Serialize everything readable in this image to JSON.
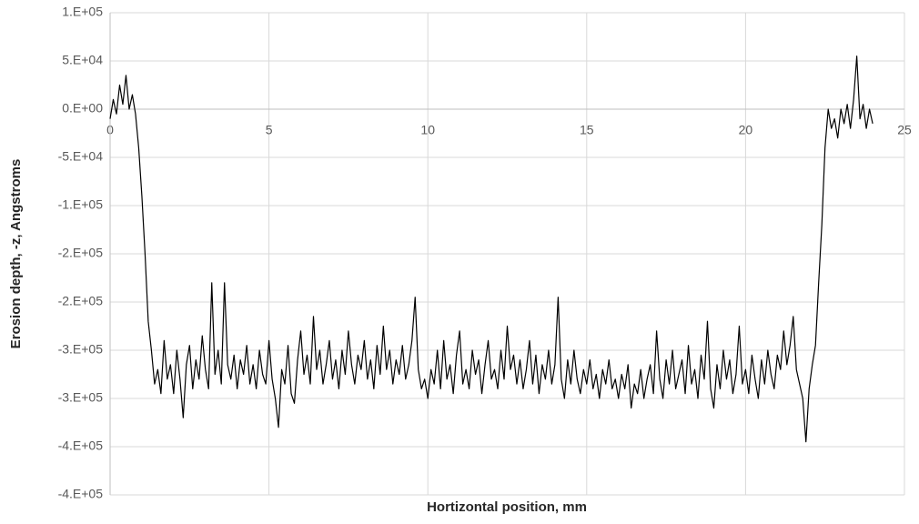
{
  "chart_data": {
    "type": "line",
    "x_label": "Hortizontal position, mm",
    "y_label": "Erosion depth, -z, Angstroms",
    "xlim": [
      0,
      25
    ],
    "xticks": [
      0,
      5,
      10,
      15,
      20,
      25
    ],
    "ylim": [
      -400000,
      100000
    ],
    "yticks": [
      {
        "value": 100000,
        "label": "1.E+05"
      },
      {
        "value": 50000,
        "label": "5.E+04"
      },
      {
        "value": 0,
        "label": "0.E+00"
      },
      {
        "value": -50000,
        "label": "-5.E+04"
      },
      {
        "value": -100000,
        "label": "-1.E+05"
      },
      {
        "value": -150000,
        "label": "-2.E+05"
      },
      {
        "value": -200000,
        "label": "-2.E+05"
      },
      {
        "value": -250000,
        "label": "-3.E+05"
      },
      {
        "value": -300000,
        "label": "-3.E+05"
      },
      {
        "value": -350000,
        "label": "-4.E+05"
      },
      {
        "value": -400000,
        "label": "-4.E+05"
      }
    ],
    "grid": true,
    "x": [
      0,
      0.1,
      0.2,
      0.3,
      0.4,
      0.5,
      0.6,
      0.7,
      0.8,
      0.9,
      1,
      1.1,
      1.2,
      1.3,
      1.4,
      1.5,
      1.6,
      1.7,
      1.8,
      1.9,
      2,
      2.1,
      2.2,
      2.3,
      2.4,
      2.5,
      2.6,
      2.7,
      2.8,
      2.9,
      3,
      3.1,
      3.2,
      3.3,
      3.4,
      3.5,
      3.6,
      3.7,
      3.8,
      3.9,
      4,
      4.1,
      4.2,
      4.3,
      4.4,
      4.5,
      4.6,
      4.7,
      4.8,
      4.9,
      5,
      5.1,
      5.2,
      5.3,
      5.4,
      5.5,
      5.6,
      5.7,
      5.8,
      5.9,
      6,
      6.1,
      6.2,
      6.3,
      6.4,
      6.5,
      6.6,
      6.7,
      6.8,
      6.9,
      7,
      7.1,
      7.2,
      7.3,
      7.4,
      7.5,
      7.6,
      7.7,
      7.8,
      7.9,
      8,
      8.1,
      8.2,
      8.3,
      8.4,
      8.5,
      8.6,
      8.7,
      8.8,
      8.9,
      9,
      9.1,
      9.2,
      9.3,
      9.4,
      9.5,
      9.6,
      9.7,
      9.8,
      9.9,
      10,
      10.1,
      10.2,
      10.3,
      10.4,
      10.5,
      10.6,
      10.7,
      10.8,
      10.9,
      11,
      11.1,
      11.2,
      11.3,
      11.4,
      11.5,
      11.6,
      11.7,
      11.8,
      11.9,
      12,
      12.1,
      12.2,
      12.3,
      12.4,
      12.5,
      12.6,
      12.7,
      12.8,
      12.9,
      13,
      13.1,
      13.2,
      13.3,
      13.4,
      13.5,
      13.6,
      13.7,
      13.8,
      13.9,
      14,
      14.1,
      14.2,
      14.3,
      14.4,
      14.5,
      14.6,
      14.7,
      14.8,
      14.9,
      15,
      15.1,
      15.2,
      15.3,
      15.4,
      15.5,
      15.6,
      15.7,
      15.8,
      15.9,
      16,
      16.1,
      16.2,
      16.3,
      16.4,
      16.5,
      16.6,
      16.7,
      16.8,
      16.9,
      17,
      17.1,
      17.2,
      17.3,
      17.4,
      17.5,
      17.6,
      17.7,
      17.8,
      17.9,
      18,
      18.1,
      18.2,
      18.3,
      18.4,
      18.5,
      18.6,
      18.7,
      18.8,
      18.9,
      19,
      19.1,
      19.2,
      19.3,
      19.4,
      19.5,
      19.6,
      19.7,
      19.8,
      19.9,
      20,
      20.1,
      20.2,
      20.3,
      20.4,
      20.5,
      20.6,
      20.7,
      20.8,
      20.9,
      21,
      21.1,
      21.2,
      21.3,
      21.4,
      21.5,
      21.6,
      21.7,
      21.8,
      21.9,
      22,
      22.1,
      22.2,
      22.3,
      22.4,
      22.5,
      22.6,
      22.7,
      22.8,
      22.9,
      23,
      23.1,
      23.2,
      23.3,
      23.4,
      23.5,
      23.6,
      23.7,
      23.8,
      23.9,
      24
    ],
    "series": [
      {
        "color": "#000000",
        "values": [
          -10000,
          10000,
          -5000,
          25000,
          5000,
          35000,
          0,
          15000,
          -5000,
          -40000,
          -90000,
          -150000,
          -220000,
          -250000,
          -285000,
          -270000,
          -295000,
          -240000,
          -280000,
          -265000,
          -295000,
          -250000,
          -280000,
          -320000,
          -265000,
          -245000,
          -290000,
          -260000,
          -280000,
          -235000,
          -270000,
          -290000,
          -180000,
          -275000,
          -250000,
          -285000,
          -180000,
          -265000,
          -280000,
          -255000,
          -290000,
          -260000,
          -275000,
          -245000,
          -285000,
          -265000,
          -290000,
          -250000,
          -275000,
          -285000,
          -240000,
          -280000,
          -300000,
          -330000,
          -270000,
          -285000,
          -245000,
          -295000,
          -305000,
          -260000,
          -230000,
          -275000,
          -255000,
          -285000,
          -215000,
          -270000,
          -250000,
          -285000,
          -265000,
          -240000,
          -280000,
          -260000,
          -290000,
          -250000,
          -275000,
          -230000,
          -265000,
          -285000,
          -255000,
          -270000,
          -240000,
          -280000,
          -260000,
          -290000,
          -245000,
          -275000,
          -225000,
          -270000,
          -250000,
          -285000,
          -260000,
          -275000,
          -245000,
          -280000,
          -265000,
          -240000,
          -195000,
          -270000,
          -290000,
          -280000,
          -300000,
          -270000,
          -285000,
          -250000,
          -290000,
          -240000,
          -280000,
          -265000,
          -295000,
          -255000,
          -230000,
          -285000,
          -270000,
          -290000,
          -250000,
          -275000,
          -260000,
          -295000,
          -265000,
          -240000,
          -280000,
          -270000,
          -290000,
          -250000,
          -280000,
          -225000,
          -270000,
          -255000,
          -285000,
          -260000,
          -290000,
          -270000,
          -240000,
          -285000,
          -255000,
          -295000,
          -265000,
          -280000,
          -250000,
          -285000,
          -265000,
          -195000,
          -280000,
          -300000,
          -260000,
          -285000,
          -250000,
          -280000,
          -295000,
          -270000,
          -285000,
          -260000,
          -290000,
          -275000,
          -300000,
          -270000,
          -285000,
          -260000,
          -290000,
          -280000,
          -300000,
          -275000,
          -290000,
          -265000,
          -310000,
          -285000,
          -295000,
          -270000,
          -300000,
          -280000,
          -265000,
          -295000,
          -230000,
          -280000,
          -300000,
          -260000,
          -285000,
          -250000,
          -290000,
          -275000,
          -260000,
          -295000,
          -245000,
          -285000,
          -270000,
          -300000,
          -255000,
          -280000,
          -220000,
          -290000,
          -310000,
          -265000,
          -290000,
          -250000,
          -280000,
          -260000,
          -295000,
          -275000,
          -225000,
          -285000,
          -270000,
          -295000,
          -255000,
          -280000,
          -300000,
          -260000,
          -285000,
          -250000,
          -275000,
          -290000,
          -255000,
          -270000,
          -230000,
          -265000,
          -245000,
          -215000,
          -270000,
          -285000,
          -300000,
          -345000,
          -290000,
          -265000,
          -245000,
          -180000,
          -120000,
          -40000,
          0,
          -20000,
          -10000,
          -30000,
          0,
          -15000,
          5000,
          -20000,
          10000,
          55000,
          -10000,
          5000,
          -20000,
          0,
          -15000
        ]
      }
    ]
  }
}
